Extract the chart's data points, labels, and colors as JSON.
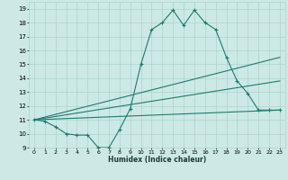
{
  "xlabel": "Humidex (Indice chaleur)",
  "xlim": [
    -0.5,
    23.5
  ],
  "ylim": [
    9,
    19.5
  ],
  "yticks": [
    9,
    10,
    11,
    12,
    13,
    14,
    15,
    16,
    17,
    18,
    19
  ],
  "xticks": [
    0,
    1,
    2,
    3,
    4,
    5,
    6,
    7,
    8,
    9,
    10,
    11,
    12,
    13,
    14,
    15,
    16,
    17,
    18,
    19,
    20,
    21,
    22,
    23
  ],
  "bg_color": "#cce9e5",
  "grid_color": "#aad4ce",
  "line_color": "#1e7a70",
  "line1_x": [
    0,
    1,
    2,
    3,
    4,
    5,
    6,
    7,
    8,
    9,
    10,
    11,
    12,
    13,
    14,
    15,
    16,
    17,
    18,
    19,
    20,
    21,
    22,
    23
  ],
  "line1_y": [
    11.0,
    10.9,
    10.5,
    10.0,
    9.9,
    9.9,
    9.0,
    9.0,
    10.3,
    11.8,
    15.0,
    17.5,
    18.0,
    18.9,
    17.8,
    18.9,
    18.0,
    17.5,
    15.5,
    13.8,
    12.9,
    11.7,
    11.7,
    11.7
  ],
  "line2_x": [
    0,
    23
  ],
  "line2_y": [
    11.0,
    15.5
  ],
  "line3_x": [
    0,
    23
  ],
  "line3_y": [
    11.0,
    11.7
  ],
  "line4_x": [
    0,
    23
  ],
  "line4_y": [
    11.0,
    13.8
  ]
}
